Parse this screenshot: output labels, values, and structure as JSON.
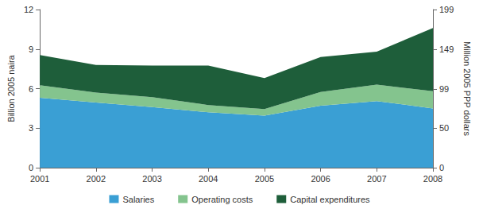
{
  "chart_data": {
    "type": "area",
    "stacked": true,
    "grid": false,
    "legend": "bottom",
    "y_label": "Billion 2005 naira",
    "y2_label": "Million 2005 PPP dollars",
    "categories": [
      "2001",
      "2002",
      "2003",
      "2004",
      "2005",
      "2006",
      "2007",
      "2008"
    ],
    "ylim": [
      0,
      12
    ],
    "yticks": [
      0,
      3,
      6,
      9,
      12
    ],
    "y2lim": [
      0,
      199
    ],
    "y2ticks": [
      0,
      50,
      99,
      149,
      199
    ],
    "series": [
      {
        "name": "Salaries",
        "color": "#3a9fd4",
        "values": [
          5.3,
          4.95,
          4.6,
          4.2,
          3.95,
          4.7,
          5.05,
          4.5
        ]
      },
      {
        "name": "Operating costs",
        "color": "#84c48e",
        "values": [
          0.95,
          0.75,
          0.75,
          0.55,
          0.5,
          1.05,
          1.25,
          1.3
        ]
      },
      {
        "name": "Capital expenditures",
        "color": "#1e5e3a",
        "values": [
          2.3,
          2.1,
          2.4,
          3.0,
          2.35,
          2.65,
          2.5,
          4.8
        ]
      }
    ]
  }
}
